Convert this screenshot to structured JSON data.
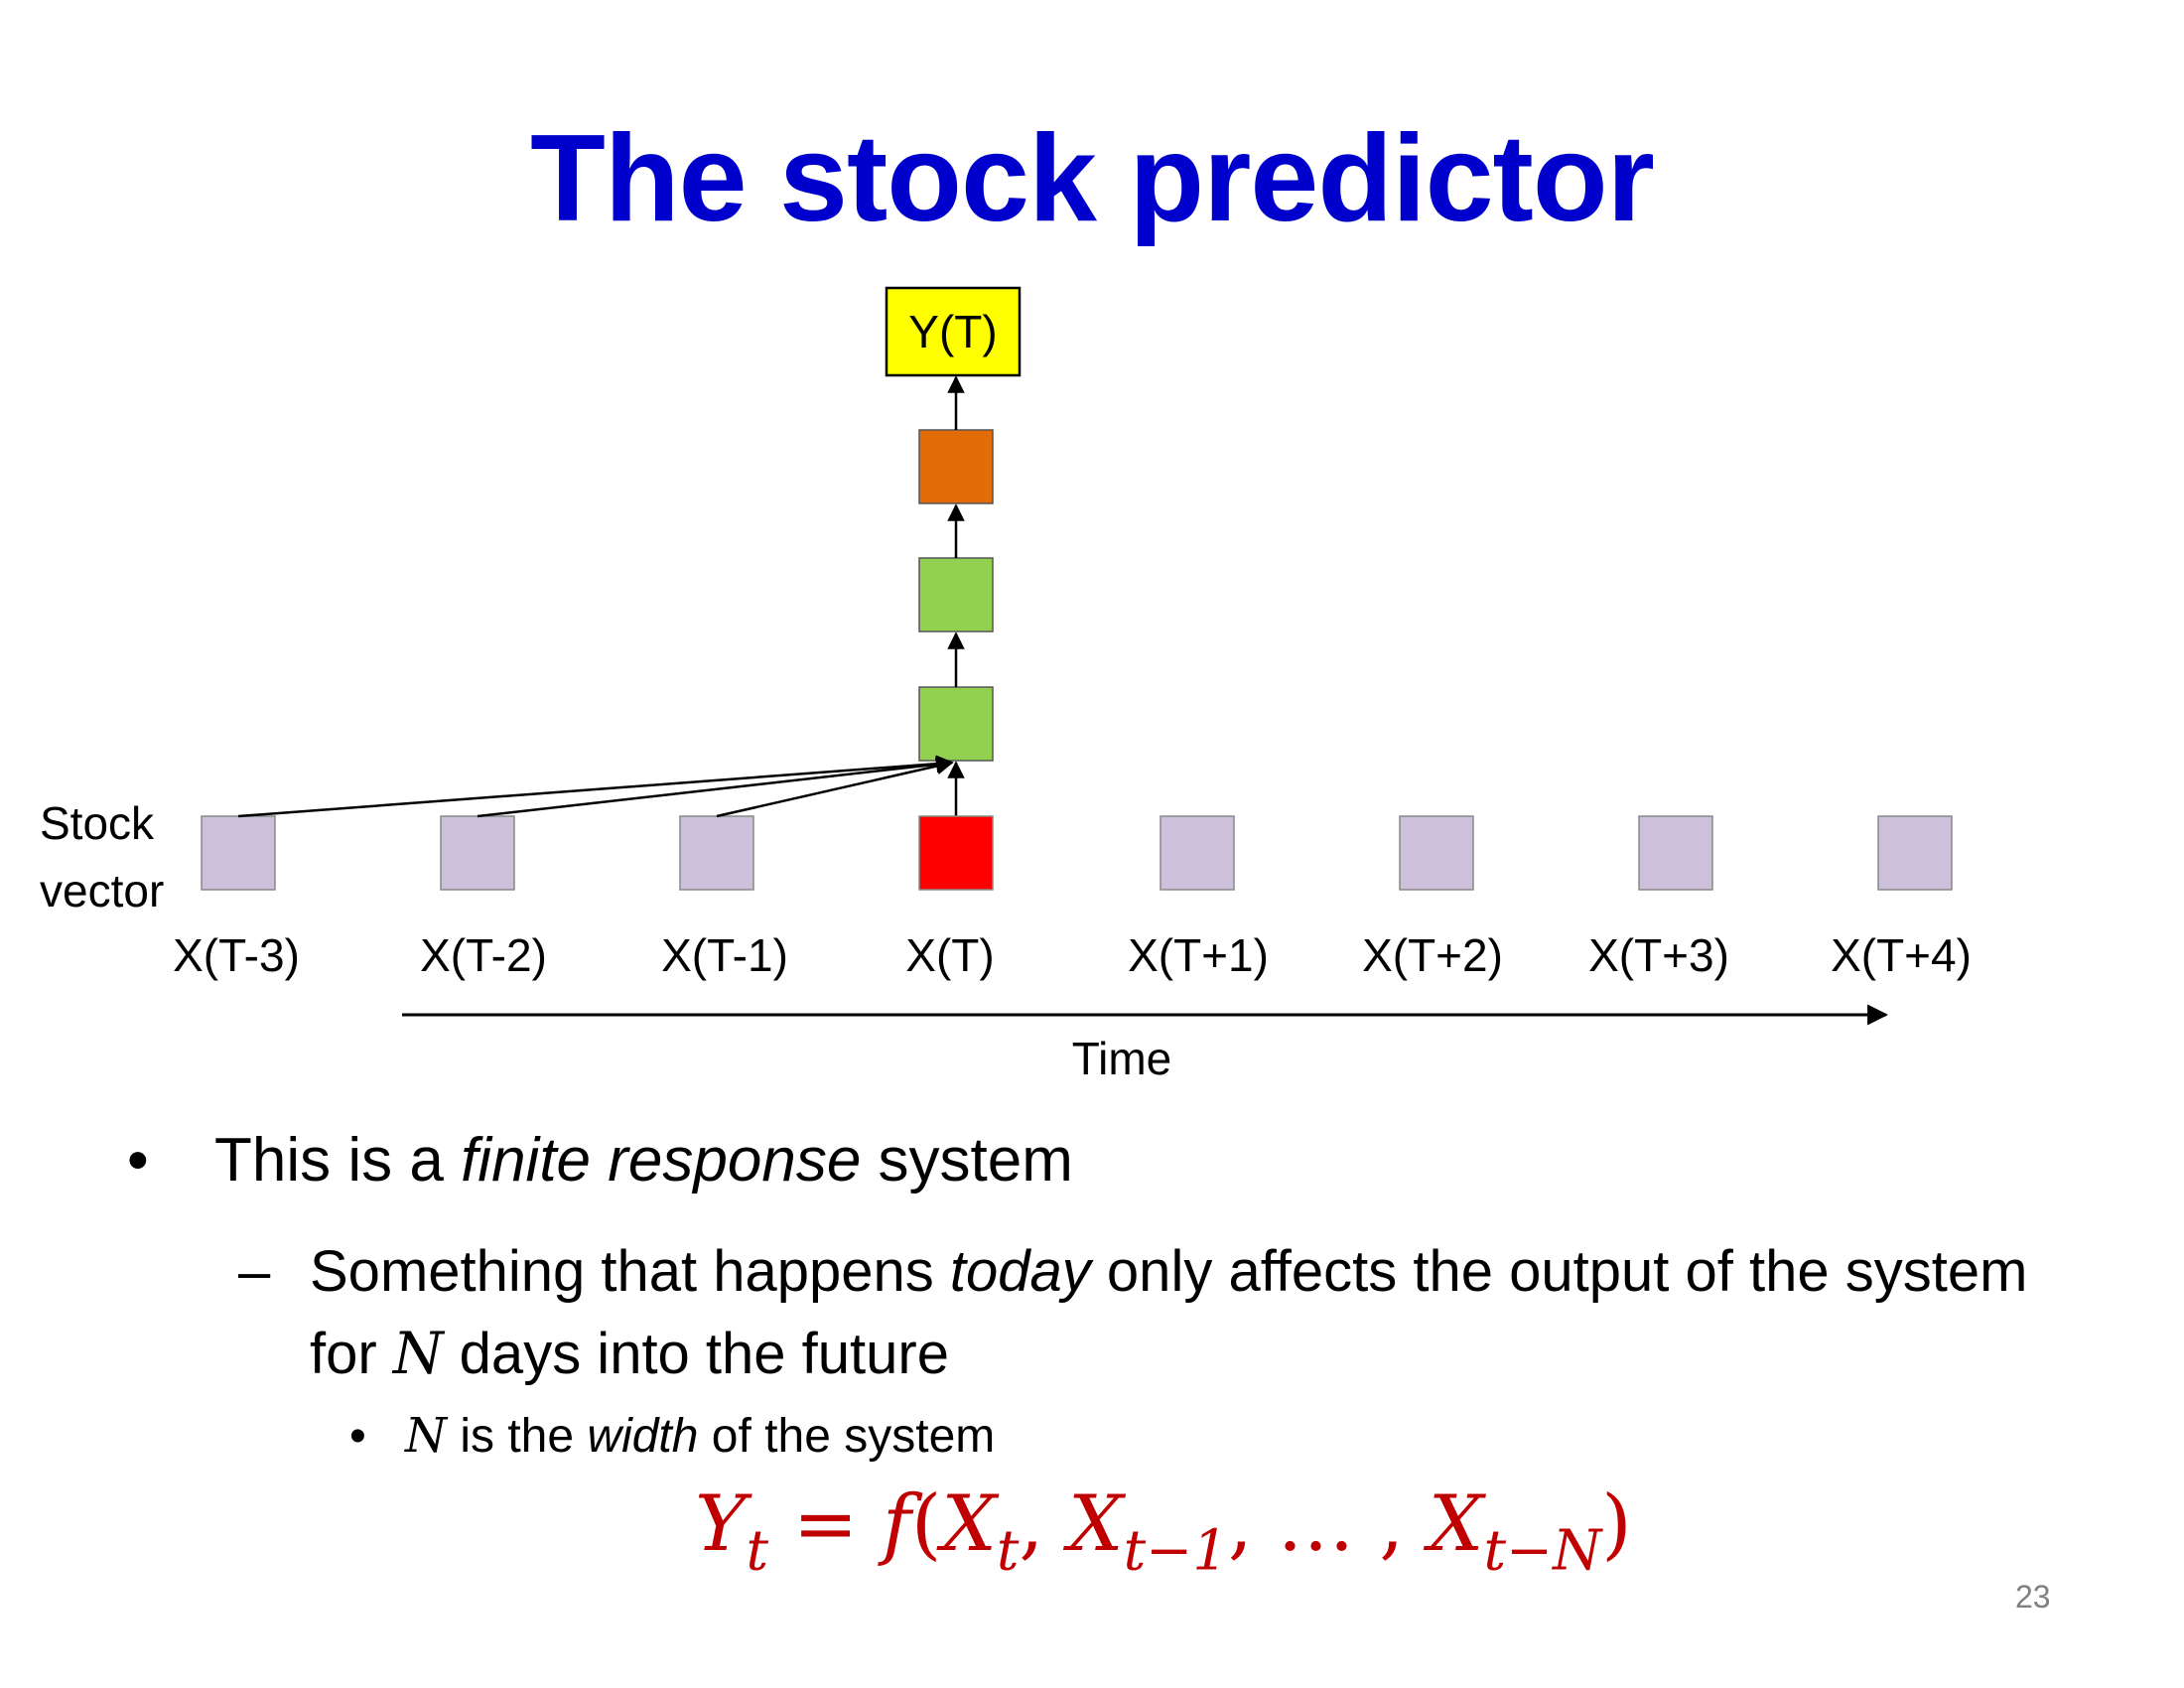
{
  "slide": {
    "title": "The stock predictor",
    "page_number": "23"
  },
  "diagram": {
    "output_label": "Y(T)",
    "stock_label_line1": "Stock",
    "stock_label_line2": "vector",
    "time_label": "Time",
    "timesteps": [
      "X(T-3)",
      "X(T-2)",
      "X(T-1)",
      "X(T)",
      "X(T+1)",
      "X(T+2)",
      "X(T+3)",
      "X(T+4)"
    ],
    "current_index": 3,
    "window_inputs": 4,
    "hidden_layers": 3,
    "colors": {
      "input": "#ccc0da",
      "current_input": "#ff0000",
      "hidden": "#92d050",
      "output_layer": "#e36c09",
      "output_box": "#ffff00",
      "title": "#0000cc",
      "formula": "#c00000"
    }
  },
  "bullets": {
    "level1": {
      "prefix": "This is a ",
      "emphasis": "finite response",
      "suffix": " system"
    },
    "level2": {
      "part1": "Something that happens ",
      "emphasis": "today",
      "part2": " only affects the output of the system for ",
      "var": "N",
      "part3": " days into the future"
    },
    "level3": {
      "var": "N",
      "part1": " is the ",
      "emphasis": "width",
      "part2": " of the system"
    }
  },
  "formula": {
    "Y": "Y",
    "Y_sub": "t",
    "equals": " = ",
    "f": "f",
    "open": "(",
    "X1": "X",
    "X1_sub": "t",
    "comma1": ", ",
    "X2": "X",
    "X2_sub": "t−1",
    "comma2": ", … , ",
    "X3": "X",
    "X3_sub": "t−N",
    "close": ")"
  }
}
